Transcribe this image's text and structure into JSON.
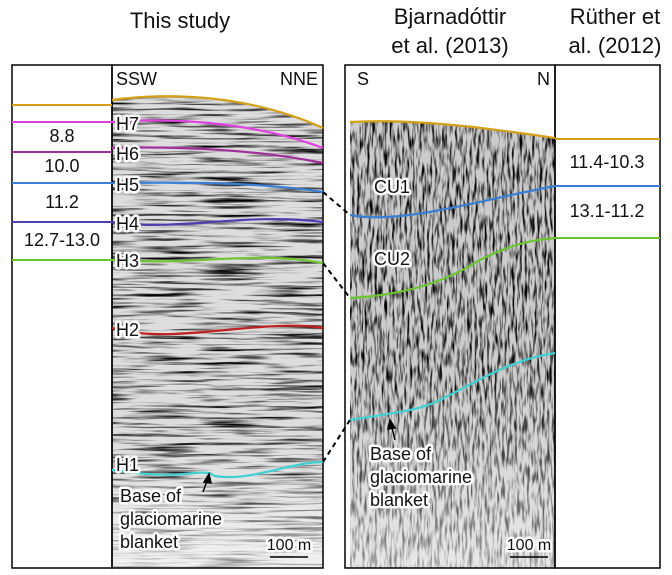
{
  "titles": {
    "this_study": "This study",
    "bjarnadottir": [
      "Bjarnadóttir",
      "et al. (2013)"
    ],
    "ruther": [
      "Rüther et",
      "al. (2012)"
    ]
  },
  "left_panel": {
    "direction_left": "SSW",
    "direction_right": "NNE",
    "horizons": [
      "H7",
      "H6",
      "H5",
      "H4",
      "H3",
      "H2",
      "H1"
    ],
    "annotation": [
      "Base of",
      "glaciomarine",
      "blanket"
    ],
    "scale": "100 m"
  },
  "left_ages": [
    "8.8",
    "10.0",
    "11.2",
    "12.7-13.0"
  ],
  "middle_panel": {
    "direction_left": "S",
    "direction_right": "N",
    "units": [
      "CU1",
      "CU2"
    ],
    "annotation": [
      "Base of",
      "glaciomarine",
      "blanket"
    ],
    "scale": "100 m"
  },
  "right_ages": [
    "11.4-10.3",
    "13.1-11.2"
  ]
}
